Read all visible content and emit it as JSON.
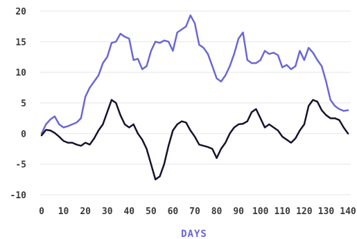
{
  "chart_data": {
    "type": "line",
    "xlabel": "DAYS",
    "ylabel": "",
    "xlim": [
      0,
      140
    ],
    "ylim": [
      -10,
      20
    ],
    "xticks": [
      0,
      10,
      20,
      30,
      40,
      50,
      60,
      70,
      80,
      90,
      100,
      110,
      120,
      130,
      140
    ],
    "yticks": [
      20,
      15,
      10,
      5,
      0,
      -5,
      -10
    ],
    "grid": "horizontal",
    "legend": "none",
    "series": [
      {
        "color": "#6a66d8",
        "x": [
          0,
          2,
          4,
          6,
          8,
          10,
          12,
          14,
          16,
          18,
          20,
          22,
          24,
          26,
          28,
          30,
          32,
          34,
          36,
          38,
          40,
          42,
          44,
          46,
          48,
          50,
          52,
          54,
          56,
          58,
          60,
          62,
          64,
          66,
          68,
          70,
          72,
          74,
          76,
          78,
          80,
          82,
          84,
          86,
          88,
          90,
          92,
          94,
          96,
          98,
          100,
          102,
          104,
          106,
          108,
          110,
          112,
          114,
          116,
          118,
          120,
          122,
          124,
          126,
          128,
          130,
          132,
          134,
          136,
          138,
          140
        ],
        "y": [
          0,
          1.5,
          2.3,
          2.8,
          1.5,
          1.0,
          1.2,
          1.5,
          1.8,
          2.5,
          6,
          7.5,
          8.5,
          9.5,
          11.5,
          12.5,
          14.8,
          15,
          16.3,
          15.8,
          15.5,
          12,
          12.2,
          10.5,
          11,
          13.5,
          15,
          14.8,
          15.2,
          15,
          13.5,
          16.5,
          17,
          17.5,
          19.3,
          18,
          14.5,
          14,
          13,
          11,
          9,
          8.5,
          9.5,
          11,
          13,
          15.5,
          16.5,
          12,
          11.5,
          11.5,
          12,
          13.5,
          13,
          13.2,
          12.8,
          10.8,
          11.2,
          10.5,
          11,
          13.5,
          12,
          14,
          13.2,
          12,
          11,
          8.5,
          5.5,
          4.5,
          4,
          3.7,
          3.8
        ]
      },
      {
        "color": "#15122e",
        "x": [
          0,
          2,
          4,
          6,
          8,
          10,
          12,
          14,
          16,
          18,
          20,
          22,
          24,
          26,
          28,
          30,
          32,
          34,
          36,
          38,
          40,
          42,
          44,
          46,
          48,
          50,
          52,
          54,
          56,
          58,
          60,
          62,
          64,
          66,
          68,
          70,
          72,
          74,
          76,
          78,
          80,
          82,
          84,
          86,
          88,
          90,
          92,
          94,
          96,
          98,
          100,
          102,
          104,
          106,
          108,
          110,
          112,
          114,
          116,
          118,
          120,
          122,
          124,
          126,
          128,
          130,
          132,
          134,
          136,
          138,
          140
        ],
        "y": [
          -0.3,
          0.6,
          0.5,
          0.1,
          -0.5,
          -1.2,
          -1.5,
          -1.5,
          -1.8,
          -2.0,
          -1.5,
          -1.8,
          -0.8,
          0.5,
          1.5,
          3.5,
          5.5,
          5.0,
          3.0,
          1.5,
          1.0,
          1.5,
          0,
          -1.0,
          -2.5,
          -5.0,
          -7.5,
          -7.0,
          -5.0,
          -2.0,
          0.5,
          1.5,
          2.0,
          1.8,
          0.5,
          -0.5,
          -1.8,
          -2.0,
          -2.2,
          -2.5,
          -4.0,
          -2.5,
          -1.5,
          0,
          1.0,
          1.5,
          1.6,
          2.0,
          3.5,
          4.0,
          2.5,
          1.0,
          1.5,
          1.0,
          0.5,
          -0.5,
          -1.0,
          -1.5,
          -0.8,
          0.5,
          1.5,
          4.5,
          5.5,
          5.2,
          3.8,
          3.0,
          2.5,
          2.5,
          2.2,
          1.0,
          0
        ]
      }
    ]
  }
}
